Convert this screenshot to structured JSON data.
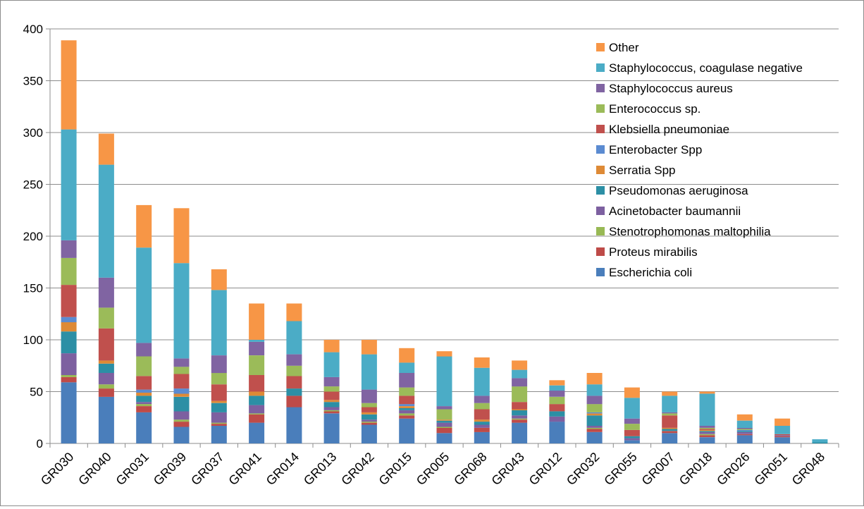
{
  "chart_data": {
    "type": "bar",
    "stacked": true,
    "categories": [
      "GR030",
      "GR040",
      "GR031",
      "GR039",
      "GR037",
      "GR041",
      "GR014",
      "GR013",
      "GR042",
      "GR015",
      "GR005",
      "GR068",
      "GR043",
      "GR012",
      "GR032",
      "GR055",
      "GR007",
      "GR018",
      "GR026",
      "GR051",
      "GR048"
    ],
    "ylim": [
      0,
      400
    ],
    "yticks": [
      "0",
      "50",
      "100",
      "150",
      "200",
      "250",
      "300",
      "350",
      "400"
    ],
    "grid": true,
    "legend_position": "top-right",
    "series": [
      {
        "name": "Escherichia coli",
        "color": "#4A7EBB",
        "values": [
          59,
          45,
          30,
          16,
          17,
          20,
          35,
          29,
          18,
          24,
          10,
          11,
          20,
          21,
          11,
          3,
          10,
          6,
          8,
          6,
          0
        ]
      },
      {
        "name": "Proteus mirabilis",
        "color": "#BE4B48",
        "values": [
          5,
          8,
          6,
          5,
          2,
          8,
          11,
          2,
          2,
          3,
          5,
          4,
          3,
          0,
          3,
          0,
          2,
          2,
          1,
          1,
          0
        ]
      },
      {
        "name": "Stenotrophomonas maltophilia",
        "color": "#98B954",
        "values": [
          2,
          4,
          2,
          2,
          1,
          1,
          0,
          1,
          1,
          2,
          1,
          0,
          1,
          0,
          1,
          0,
          0,
          1,
          0,
          0,
          0
        ]
      },
      {
        "name": "Acinetobacter baumannii",
        "color": "#7D60A0",
        "values": [
          21,
          11,
          2,
          8,
          10,
          8,
          0,
          3,
          2,
          3,
          4,
          3,
          3,
          5,
          2,
          2,
          0,
          2,
          2,
          1,
          0
        ]
      },
      {
        "name": "Pseudomonas aeruginosa",
        "color": "#2C8FA5",
        "values": [
          21,
          9,
          6,
          14,
          9,
          9,
          7,
          5,
          5,
          2,
          2,
          3,
          5,
          5,
          10,
          2,
          2,
          1,
          1,
          0,
          1
        ]
      },
      {
        "name": "Serratia Spp",
        "color": "#DE8A36",
        "values": [
          9,
          3,
          3,
          3,
          2,
          4,
          0,
          2,
          2,
          2,
          1,
          2,
          1,
          0,
          2,
          0,
          1,
          1,
          0,
          0,
          0
        ]
      },
      {
        "name": "Enterobacter Spp",
        "color": "#5B8BD1",
        "values": [
          5,
          0,
          3,
          5,
          0,
          0,
          0,
          0,
          0,
          2,
          0,
          0,
          0,
          0,
          1,
          0,
          0,
          0,
          1,
          0,
          0
        ]
      },
      {
        "name": "Klebsiella pneumoniae",
        "color": "#C0504D",
        "values": [
          31,
          31,
          13,
          14,
          16,
          16,
          12,
          8,
          5,
          8,
          0,
          10,
          7,
          7,
          0,
          6,
          12,
          1,
          0,
          1,
          0
        ]
      },
      {
        "name": "Enterococcus sp.",
        "color": "#9BBB59",
        "values": [
          26,
          20,
          19,
          7,
          11,
          19,
          10,
          5,
          4,
          8,
          10,
          6,
          15,
          7,
          8,
          6,
          2,
          1,
          1,
          0,
          0
        ]
      },
      {
        "name": "Staphylococcus aureus",
        "color": "#8064A2",
        "values": [
          17,
          29,
          13,
          8,
          17,
          13,
          11,
          9,
          13,
          14,
          3,
          7,
          8,
          6,
          8,
          5,
          1,
          2,
          1,
          0,
          0
        ]
      },
      {
        "name": "Staphylococcus, coagulase negative",
        "color": "#4BACC6",
        "values": [
          107,
          109,
          92,
          92,
          63,
          2,
          32,
          24,
          34,
          10,
          48,
          27,
          8,
          5,
          11,
          20,
          16,
          31,
          7,
          8,
          3
        ]
      },
      {
        "name": "Other",
        "color": "#F79646",
        "values": [
          86,
          30,
          41,
          53,
          20,
          35,
          17,
          12,
          14,
          14,
          5,
          10,
          9,
          5,
          11,
          10,
          4,
          2,
          6,
          7,
          0
        ]
      }
    ]
  }
}
